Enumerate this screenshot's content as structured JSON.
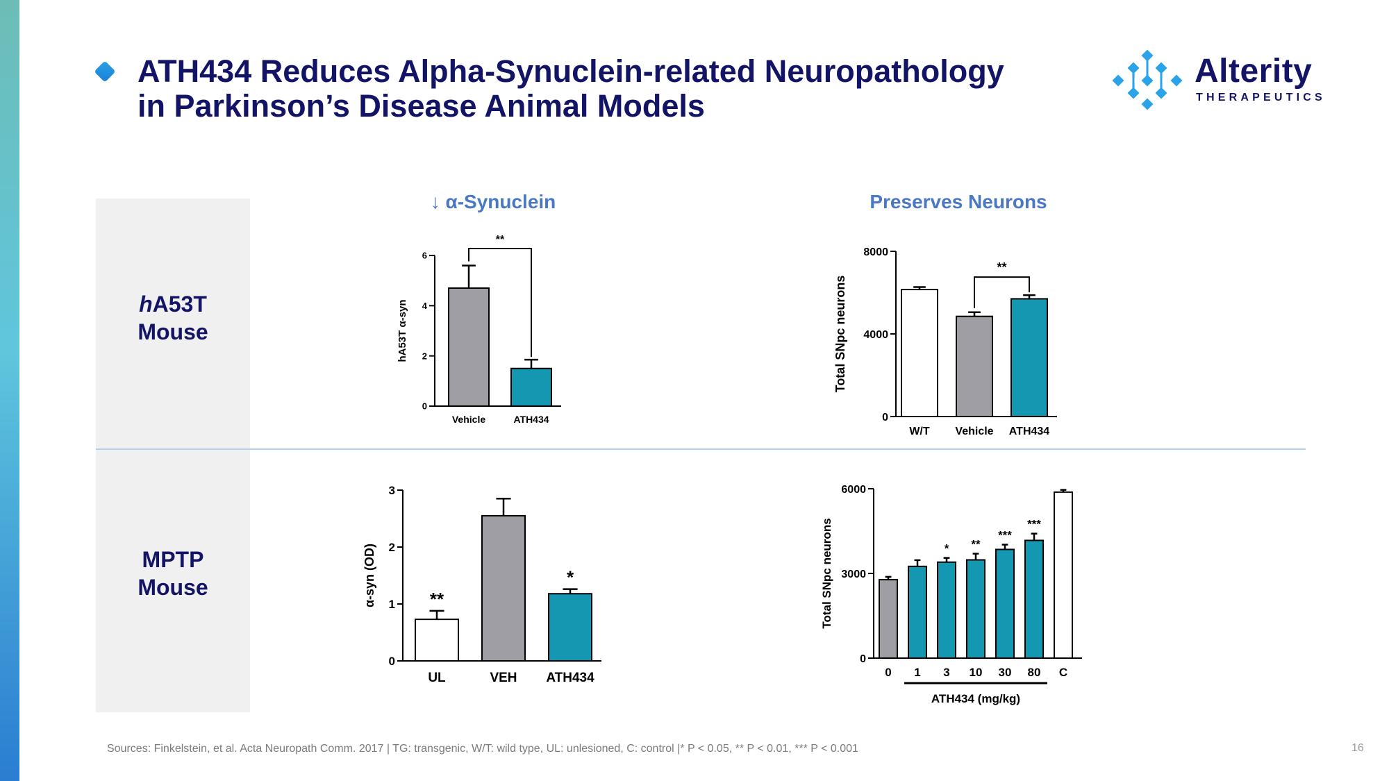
{
  "header": {
    "title_line1": "ATH434 Reduces Alpha-Synuclein-related Neuropathology",
    "title_line2": "in Parkinson’s Disease Animal Models"
  },
  "logo": {
    "word": "Alterity",
    "sub": "THERAPEUTICS",
    "colors": {
      "navy": "#141466",
      "blue": "#2aa3e8"
    }
  },
  "sections": {
    "col1_heading": "↓ α-Synuclein",
    "col2_heading": "Preserves Neurons",
    "row1_label_italic": "h",
    "row1_label_rest": "A53T",
    "row1_label_line2": "Mouse",
    "row2_label_line1": "MPTP",
    "row2_label_line2": "Mouse"
  },
  "colors": {
    "vehicle_gray": "#9e9ea4",
    "drug_teal": "#1497b0",
    "control_white": "#ffffff"
  },
  "chart_data": [
    {
      "id": "ha53t-syn",
      "type": "bar",
      "categories": [
        "Vehicle",
        "ATH434"
      ],
      "values": [
        4.7,
        1.5
      ],
      "errors": [
        0.9,
        0.35
      ],
      "colors": [
        "#9e9ea4",
        "#1497b0"
      ],
      "ylabel": "hA53T α-syn",
      "ylim": [
        0,
        6
      ],
      "yticks": [
        0,
        2,
        4,
        6
      ],
      "brackets": [
        {
          "from": 0,
          "to": 1,
          "label": "**"
        }
      ]
    },
    {
      "id": "ha53t-neurons",
      "type": "bar",
      "categories": [
        "W/T",
        "Vehicle",
        "ATH434"
      ],
      "values": [
        6150,
        4850,
        5700
      ],
      "errors": [
        120,
        200,
        180
      ],
      "colors": [
        "#ffffff",
        "#9e9ea4",
        "#1497b0"
      ],
      "ylabel": "Total SNpc neurons",
      "ylim": [
        0,
        8000
      ],
      "yticks": [
        0,
        4000,
        8000
      ],
      "brackets": [
        {
          "from": 1,
          "to": 2,
          "label": "**"
        }
      ]
    },
    {
      "id": "mptp-syn",
      "type": "bar",
      "categories": [
        "UL",
        "VEH",
        "ATH434"
      ],
      "values": [
        0.73,
        2.55,
        1.18
      ],
      "errors": [
        0.15,
        0.3,
        0.08
      ],
      "colors": [
        "#ffffff",
        "#9e9ea4",
        "#1497b0"
      ],
      "ylabel": "α-syn (OD)",
      "ylim": [
        0,
        3
      ],
      "yticks": [
        0,
        1,
        2,
        3
      ],
      "sig": [
        "**",
        "",
        "*"
      ]
    },
    {
      "id": "mptp-neurons",
      "type": "bar",
      "categories": [
        "0",
        "1",
        "3",
        "10",
        "30",
        "80",
        "C"
      ],
      "values": [
        2780,
        3250,
        3400,
        3480,
        3850,
        4170,
        5880
      ],
      "errors": [
        100,
        220,
        150,
        220,
        170,
        240,
        80
      ],
      "colors": [
        "#9e9ea4",
        "#1497b0",
        "#1497b0",
        "#1497b0",
        "#1497b0",
        "#1497b0",
        "#ffffff"
      ],
      "ylabel": "Total SNpc neurons",
      "xlabel": "ATH434 (mg/kg)",
      "ylim": [
        0,
        6000
      ],
      "yticks": [
        0,
        3000,
        6000
      ],
      "sig": [
        "",
        "",
        "*",
        "**",
        "***",
        "***",
        ""
      ],
      "xgroup": {
        "from": 1,
        "to": 5
      }
    }
  ],
  "footer": {
    "sources": "Sources: Finkelstein, et al. Acta Neuropath Comm. 2017 | TG: transgenic, W/T: wild type, UL: unlesioned, C: control |* P < 0.05, ** P < 0.01, *** P < 0.001",
    "page": "16"
  }
}
